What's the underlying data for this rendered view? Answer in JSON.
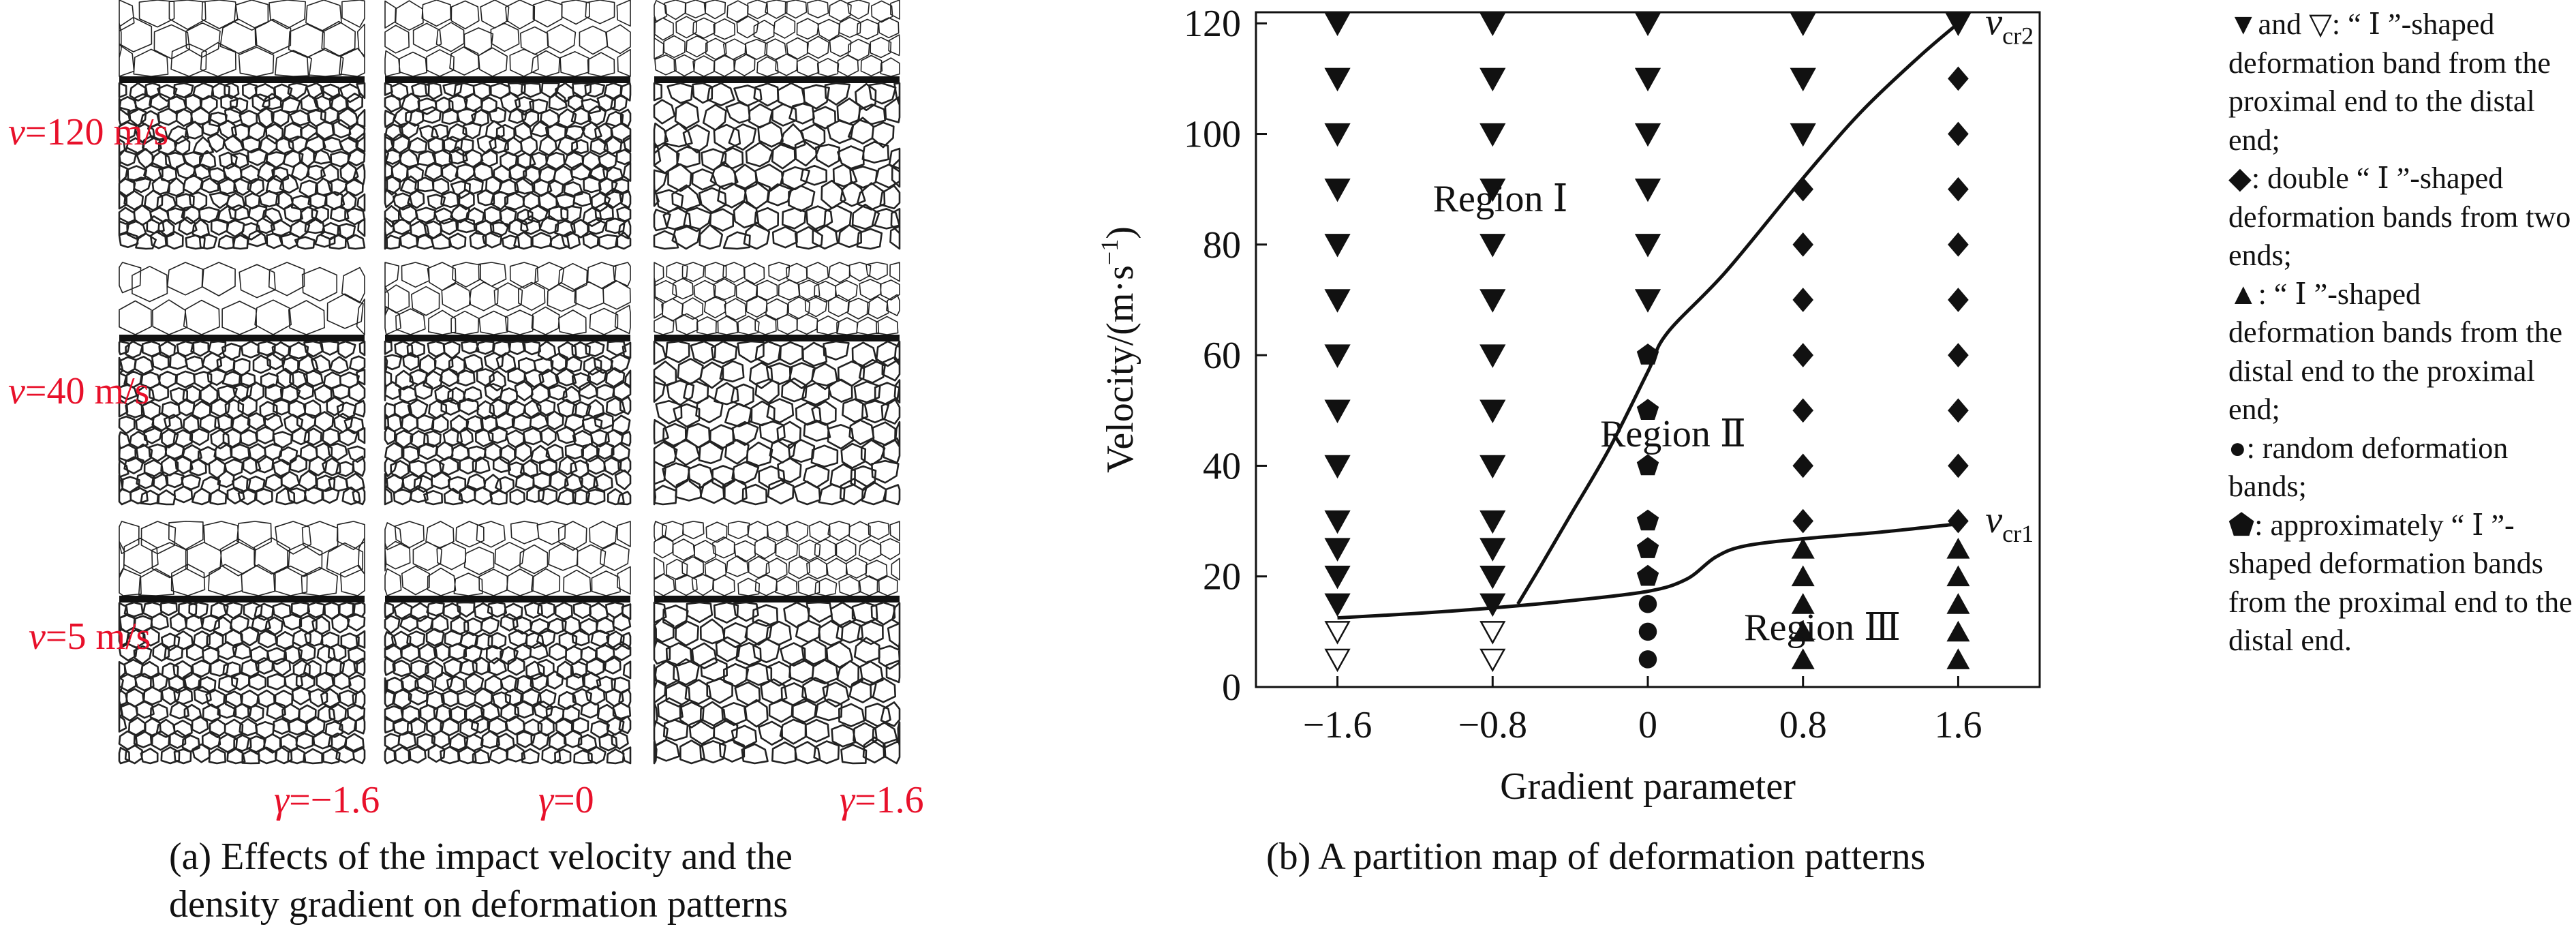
{
  "figure": {
    "caption_a_line1": "(a) Effects of the impact velocity and the",
    "caption_a_line2": "density gradient on deformation patterns",
    "caption_b": "(b) A partition map of deformation patterns"
  },
  "panel_a": {
    "rows": [
      {
        "velocity_var": "v",
        "velocity_text": "=120 m/s"
      },
      {
        "velocity_var": "v",
        "velocity_text": "=40 m/s"
      },
      {
        "velocity_var": "v",
        "velocity_text": "=5 m/s"
      }
    ],
    "columns": [
      {
        "gamma_var": "γ",
        "gamma_text": "=−1.6"
      },
      {
        "gamma_var": "γ",
        "gamma_text": "=0"
      },
      {
        "gamma_var": "γ",
        "gamma_text": "=1.6"
      }
    ]
  },
  "chart_data": {
    "type": "scatter",
    "xlabel": "Gradient parameter",
    "ylabel_main": "Velocity/(m·s",
    "ylabel_sup": "−1",
    "ylabel_end": ")",
    "x_ticks": [
      -1.6,
      -0.8,
      0,
      0.8,
      1.6
    ],
    "x_tick_labels": [
      "−1.6",
      "−0.8",
      "0",
      "0.8",
      "1.6"
    ],
    "y_ticks": [
      0,
      20,
      40,
      60,
      80,
      100,
      120
    ],
    "xlim": [
      -2.02,
      2.02
    ],
    "ylim": [
      0,
      122
    ],
    "regions": [
      {
        "label": "Region Ⅰ",
        "x": -0.76,
        "y": 86
      },
      {
        "label": "Region Ⅱ",
        "x": 0.13,
        "y": 43.5
      },
      {
        "label": "Region Ⅲ",
        "x": 0.9,
        "y": 8.5
      }
    ],
    "curve_labels": [
      {
        "var": "v",
        "sub": "cr2",
        "x": 1.74,
        "y": 118
      },
      {
        "var": "v",
        "sub": "cr1",
        "x": 1.74,
        "y": 28
      }
    ],
    "curves": {
      "v_cr1": [
        [
          -1.6,
          12.5
        ],
        [
          -1.2,
          13.3
        ],
        [
          -0.8,
          14.3
        ],
        [
          -0.4,
          15.6
        ],
        [
          0,
          17.3
        ],
        [
          0.2,
          19.5
        ],
        [
          0.35,
          23.5
        ],
        [
          0.5,
          25.5
        ],
        [
          0.8,
          26.8
        ],
        [
          1.2,
          28
        ],
        [
          1.6,
          29.5
        ]
      ],
      "v_cr2": [
        [
          -0.67,
          15
        ],
        [
          -0.55,
          22
        ],
        [
          -0.4,
          31
        ],
        [
          -0.2,
          43
        ],
        [
          0,
          57
        ],
        [
          0.1,
          64
        ],
        [
          0.4,
          75
        ],
        [
          0.8,
          92
        ],
        [
          1.1,
          104
        ],
        [
          1.4,
          114
        ],
        [
          1.6,
          120
        ]
      ]
    },
    "series": [
      {
        "name": "▼",
        "marker": "tri-down-filled",
        "points": [
          [
            -1.6,
            120
          ],
          [
            -1.6,
            110
          ],
          [
            -1.6,
            100
          ],
          [
            -1.6,
            90
          ],
          [
            -1.6,
            80
          ],
          [
            -1.6,
            70
          ],
          [
            -1.6,
            60
          ],
          [
            -1.6,
            50
          ],
          [
            -1.6,
            40
          ],
          [
            -1.6,
            30
          ],
          [
            -1.6,
            25
          ],
          [
            -1.6,
            20
          ],
          [
            -1.6,
            15
          ],
          [
            -0.8,
            120
          ],
          [
            -0.8,
            110
          ],
          [
            -0.8,
            100
          ],
          [
            -0.8,
            90
          ],
          [
            -0.8,
            80
          ],
          [
            -0.8,
            70
          ],
          [
            -0.8,
            60
          ],
          [
            -0.8,
            50
          ],
          [
            -0.8,
            40
          ],
          [
            -0.8,
            30
          ],
          [
            -0.8,
            25
          ],
          [
            -0.8,
            20
          ],
          [
            -0.8,
            15
          ],
          [
            0,
            120
          ],
          [
            0,
            110
          ],
          [
            0,
            100
          ],
          [
            0,
            90
          ],
          [
            0,
            80
          ],
          [
            0,
            70
          ],
          [
            0.8,
            120
          ],
          [
            0.8,
            110
          ],
          [
            0.8,
            100
          ],
          [
            1.6,
            120
          ]
        ]
      },
      {
        "name": "▽",
        "marker": "tri-down-open",
        "points": [
          [
            -1.6,
            10
          ],
          [
            -1.6,
            5
          ],
          [
            -0.8,
            10
          ],
          [
            -0.8,
            5
          ]
        ]
      },
      {
        "name": "◆",
        "marker": "diamond",
        "points": [
          [
            0.8,
            90
          ],
          [
            0.8,
            80
          ],
          [
            0.8,
            70
          ],
          [
            0.8,
            60
          ],
          [
            0.8,
            50
          ],
          [
            0.8,
            40
          ],
          [
            0.8,
            30
          ],
          [
            1.6,
            110
          ],
          [
            1.6,
            100
          ],
          [
            1.6,
            90
          ],
          [
            1.6,
            80
          ],
          [
            1.6,
            70
          ],
          [
            1.6,
            60
          ],
          [
            1.6,
            50
          ],
          [
            1.6,
            40
          ],
          [
            1.6,
            30
          ]
        ]
      },
      {
        "name": "▲",
        "marker": "tri-up-filled",
        "points": [
          [
            0.8,
            25
          ],
          [
            0.8,
            20
          ],
          [
            0.8,
            15
          ],
          [
            0.8,
            10
          ],
          [
            0.8,
            5
          ],
          [
            1.6,
            25
          ],
          [
            1.6,
            20
          ],
          [
            1.6,
            15
          ],
          [
            1.6,
            10
          ],
          [
            1.6,
            5
          ]
        ]
      },
      {
        "name": "●",
        "marker": "circle",
        "points": [
          [
            0,
            15
          ],
          [
            0,
            10
          ],
          [
            0,
            5
          ]
        ]
      },
      {
        "name": "⬟",
        "marker": "pentagon",
        "points": [
          [
            0,
            60
          ],
          [
            0,
            50
          ],
          [
            0,
            40
          ],
          [
            0,
            30
          ],
          [
            0,
            25
          ],
          [
            0,
            20
          ]
        ]
      }
    ]
  },
  "legend": [
    {
      "symbol": "▼and ▽",
      "text": ": “ Ⅰ ”-shaped deformation band from the proximal end to the distal end;"
    },
    {
      "symbol": "◆",
      "text": ": double “ Ⅰ ”-shaped deformation bands from two ends;"
    },
    {
      "symbol": "▲",
      "text": ": “ Ⅰ ”-shaped deformation bands from the distal end to the proximal end;"
    },
    {
      "symbol": "●",
      "text": ": random deformation bands;"
    },
    {
      "symbol": "⬟",
      "text": ": approximately “ Ⅰ ”-shaped deformation bands from the proximal end to the distal end."
    }
  ]
}
